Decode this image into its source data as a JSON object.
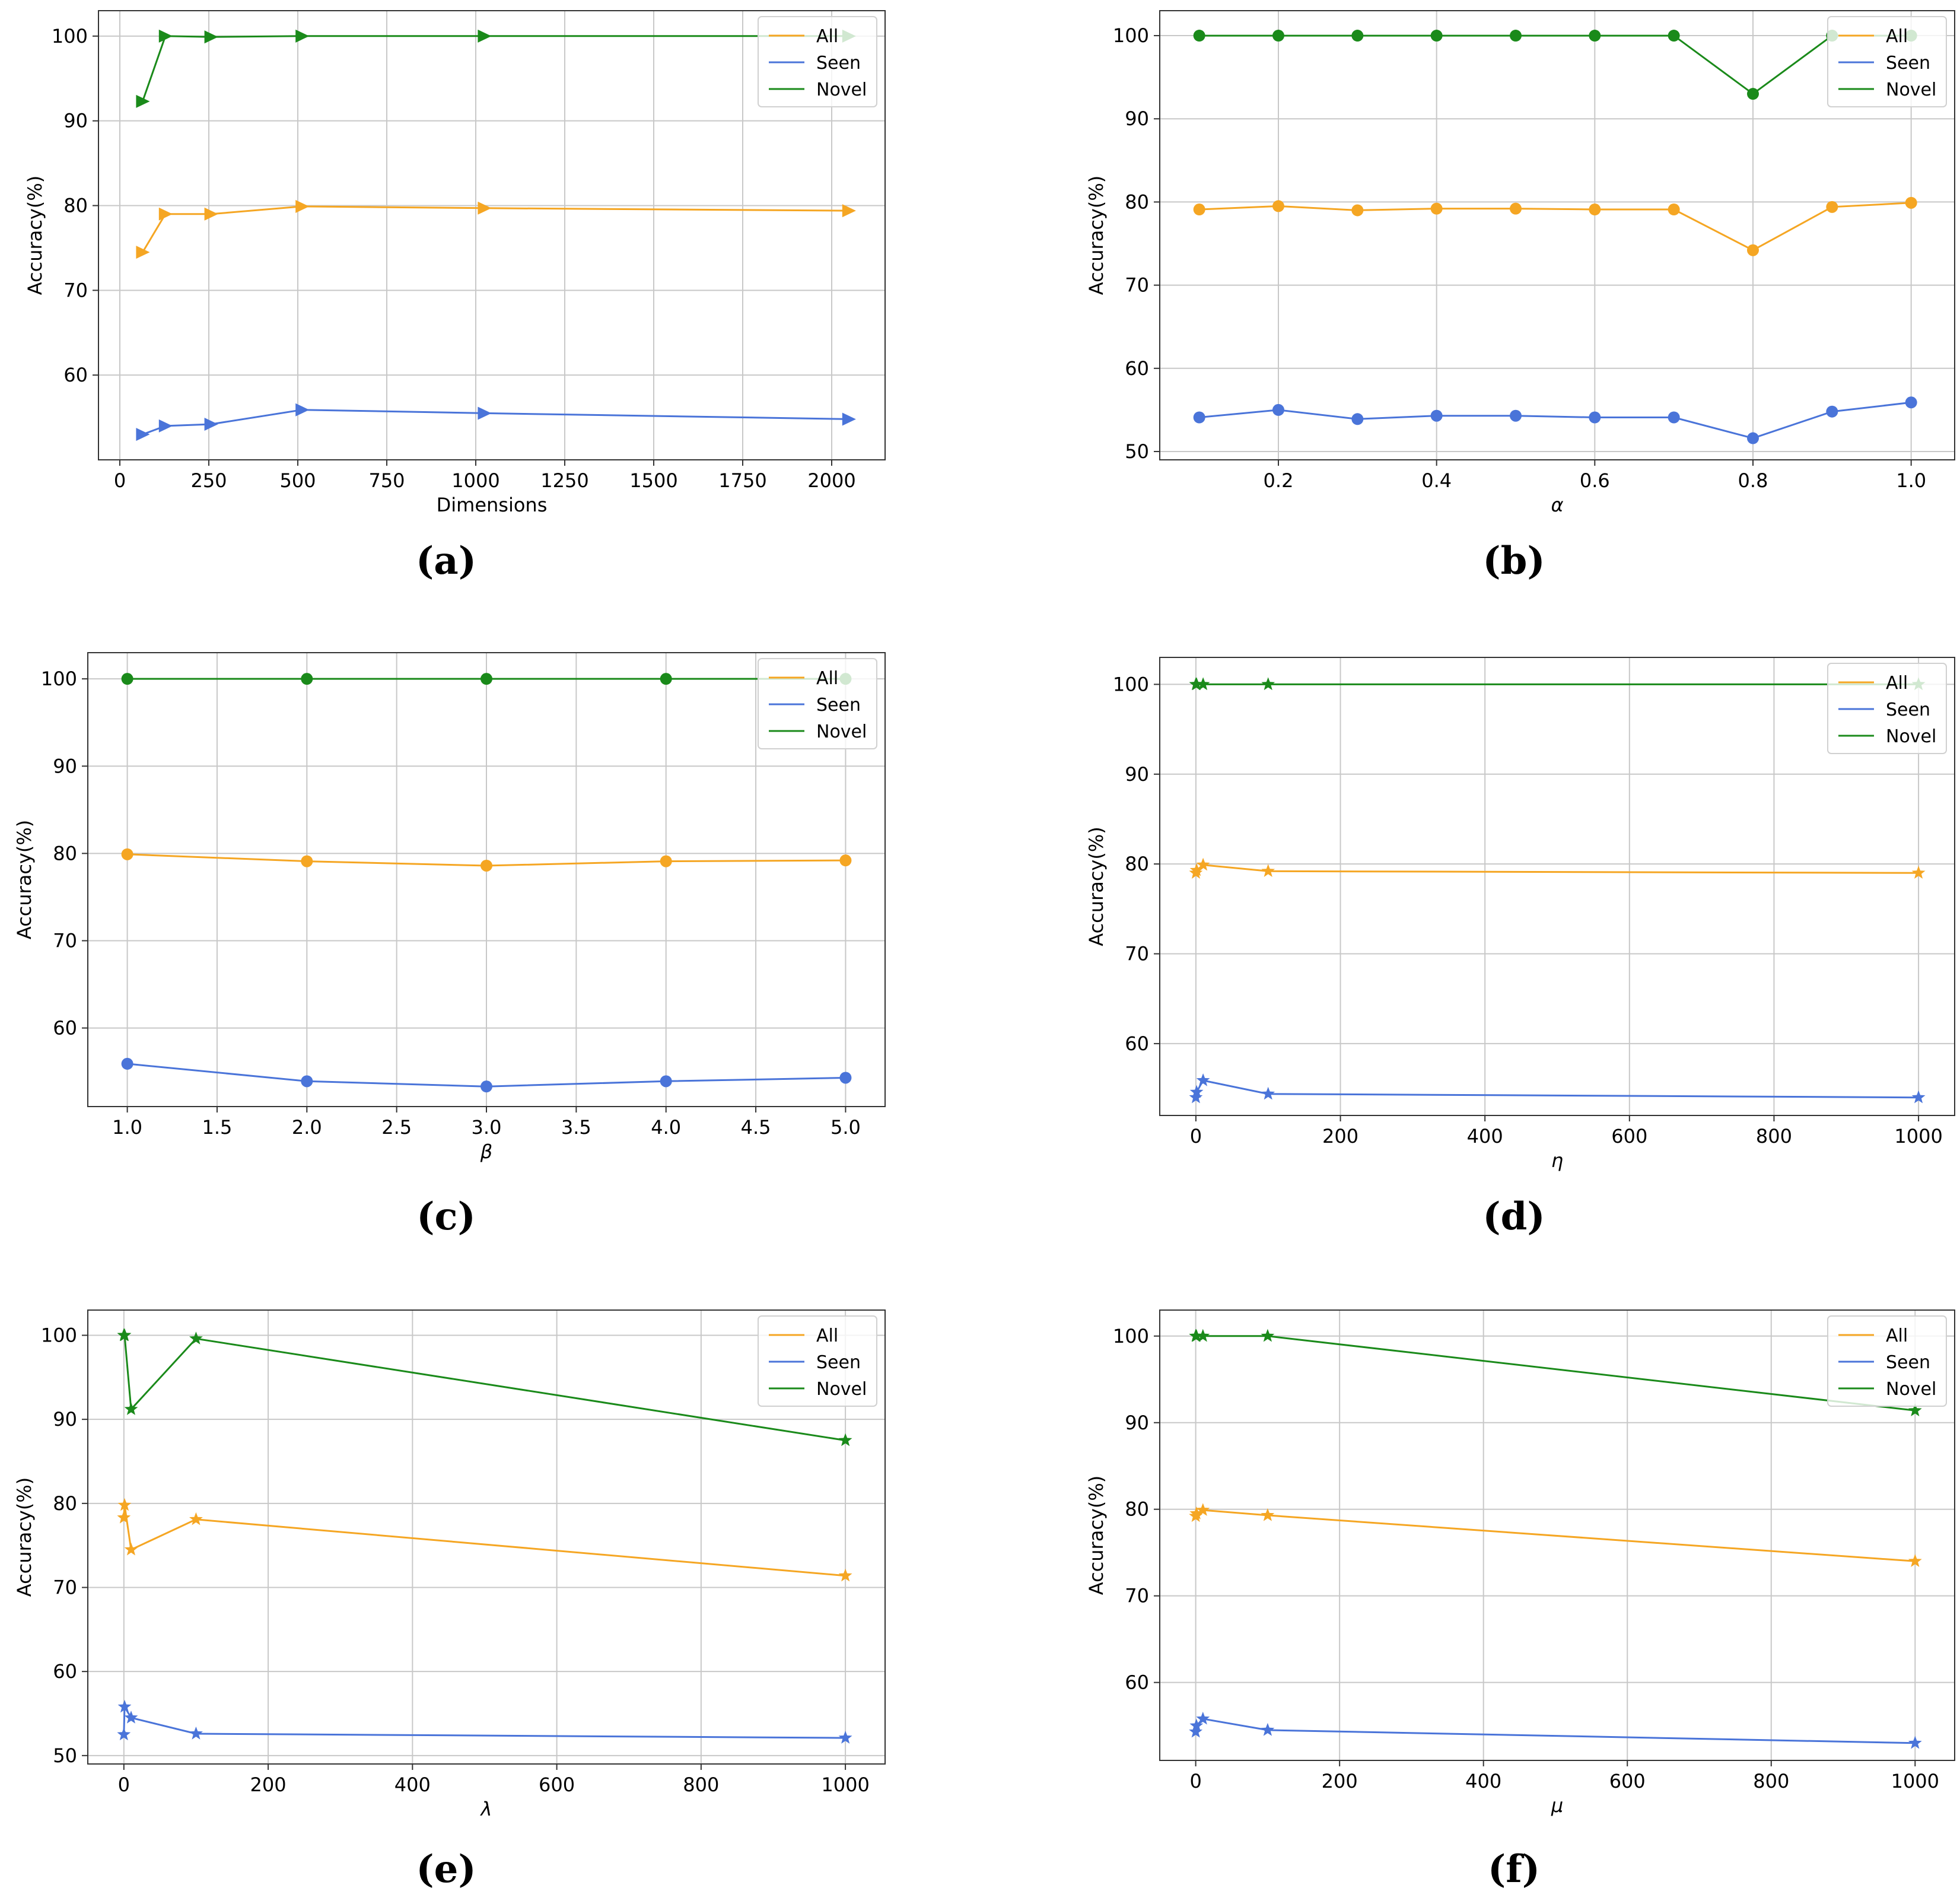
{
  "colors": {
    "all": "#f5a623",
    "seen": "#4a74d9",
    "novel": "#1a8a1a",
    "grid": "#c8c8c8",
    "axis": "#333333"
  },
  "chart_data": [
    {
      "id": "a",
      "type": "line",
      "marker": "triangle-right",
      "panel_label": "(a)",
      "xlabel": "Dimensions",
      "ylabel": "Accuracy(%)",
      "xlim": [
        -60,
        2150
      ],
      "ylim": [
        50,
        103
      ],
      "xticks": [
        0,
        250,
        500,
        750,
        1000,
        1250,
        1500,
        1750,
        2000
      ],
      "xtick_labels": [
        "0",
        "250",
        "500",
        "750",
        "1000",
        "1250",
        "1500",
        "1750",
        "2000"
      ],
      "yticks": [
        60,
        70,
        80,
        90,
        100
      ],
      "ytick_labels": [
        "60",
        "70",
        "80",
        "90",
        "100"
      ],
      "x": [
        64,
        128,
        256,
        512,
        1024,
        2048
      ],
      "legend": "top-right",
      "series": [
        {
          "key": "all",
          "name": "All",
          "values": [
            74.5,
            79.0,
            79.0,
            79.9,
            79.7,
            79.4
          ]
        },
        {
          "key": "seen",
          "name": "Seen",
          "values": [
            53.0,
            54.0,
            54.2,
            55.9,
            55.5,
            54.8
          ]
        },
        {
          "key": "novel",
          "name": "Novel",
          "values": [
            92.3,
            100.0,
            99.9,
            100.0,
            100.0,
            100.0
          ]
        }
      ]
    },
    {
      "id": "b",
      "type": "line",
      "marker": "circle",
      "panel_label": "(b)",
      "xlabel": "α",
      "ylabel": "Accuracy(%)",
      "xlim": [
        0.05,
        1.055
      ],
      "ylim": [
        49,
        103
      ],
      "xticks": [
        0.2,
        0.4,
        0.6,
        0.8,
        1.0
      ],
      "xtick_labels": [
        "0.2",
        "0.4",
        "0.6",
        "0.8",
        "1.0"
      ],
      "yticks": [
        50,
        60,
        70,
        80,
        90,
        100
      ],
      "ytick_labels": [
        "50",
        "60",
        "70",
        "80",
        "90",
        "100"
      ],
      "x": [
        0.1,
        0.2,
        0.3,
        0.4,
        0.5,
        0.6,
        0.7,
        0.8,
        0.9,
        1.0
      ],
      "legend": "top-right",
      "series": [
        {
          "key": "all",
          "name": "All",
          "values": [
            79.1,
            79.5,
            79.0,
            79.2,
            79.2,
            79.1,
            79.1,
            74.2,
            79.4,
            79.9
          ]
        },
        {
          "key": "seen",
          "name": "Seen",
          "values": [
            54.1,
            55.0,
            53.9,
            54.3,
            54.3,
            54.1,
            54.1,
            51.6,
            54.8,
            55.9
          ]
        },
        {
          "key": "novel",
          "name": "Novel",
          "values": [
            100.0,
            100.0,
            100.0,
            100.0,
            100.0,
            100.0,
            100.0,
            93.0,
            100.0,
            100.0
          ]
        }
      ]
    },
    {
      "id": "c",
      "type": "line",
      "marker": "circle",
      "panel_label": "(c)",
      "xlabel": "β",
      "ylabel": "Accuracy(%)",
      "xlim": [
        0.78,
        5.22
      ],
      "ylim": [
        51,
        103
      ],
      "xticks": [
        1.0,
        1.5,
        2.0,
        2.5,
        3.0,
        3.5,
        4.0,
        4.5,
        5.0
      ],
      "xtick_labels": [
        "1.0",
        "1.5",
        "2.0",
        "2.5",
        "3.0",
        "3.5",
        "4.0",
        "4.5",
        "5.0"
      ],
      "yticks": [
        60,
        70,
        80,
        90,
        100
      ],
      "ytick_labels": [
        "60",
        "70",
        "80",
        "90",
        "100"
      ],
      "x": [
        1,
        2,
        3,
        4,
        5
      ],
      "legend": "top-right",
      "series": [
        {
          "key": "all",
          "name": "All",
          "values": [
            79.9,
            79.1,
            78.6,
            79.1,
            79.2
          ]
        },
        {
          "key": "seen",
          "name": "Seen",
          "values": [
            55.9,
            53.9,
            53.3,
            53.9,
            54.3
          ]
        },
        {
          "key": "novel",
          "name": "Novel",
          "values": [
            100.0,
            100.0,
            100.0,
            100.0,
            100.0
          ]
        }
      ]
    },
    {
      "id": "d",
      "type": "line",
      "marker": "star",
      "panel_label": "(d)",
      "xlabel": "η",
      "ylabel": "Accuracy(%)",
      "xlim": [
        -50,
        1050
      ],
      "ylim": [
        52,
        103
      ],
      "xticks": [
        0,
        200,
        400,
        600,
        800,
        1000
      ],
      "xtick_labels": [
        "0",
        "200",
        "400",
        "600",
        "800",
        "1000"
      ],
      "yticks": [
        60,
        70,
        80,
        90,
        100
      ],
      "ytick_labels": [
        "60",
        "70",
        "80",
        "90",
        "100"
      ],
      "x": [
        0.01,
        1,
        10,
        100,
        1000
      ],
      "legend": "top-right",
      "series": [
        {
          "key": "all",
          "name": "All",
          "values": [
            79.0,
            79.3,
            79.9,
            79.2,
            79.0
          ]
        },
        {
          "key": "seen",
          "name": "Seen",
          "values": [
            54.0,
            54.6,
            55.9,
            54.4,
            54.0
          ]
        },
        {
          "key": "novel",
          "name": "Novel",
          "values": [
            100.0,
            100.0,
            100.0,
            100.0,
            100.0
          ]
        }
      ]
    },
    {
      "id": "e",
      "type": "line",
      "marker": "star",
      "panel_label": "(e)",
      "xlabel": "λ",
      "ylabel": "Accuracy(%)",
      "xlim": [
        -50,
        1055
      ],
      "ylim": [
        49,
        103
      ],
      "xticks": [
        0,
        200,
        400,
        600,
        800,
        1000
      ],
      "xtick_labels": [
        "0",
        "200",
        "400",
        "600",
        "800",
        "1000"
      ],
      "yticks": [
        50,
        60,
        70,
        80,
        90,
        100
      ],
      "ytick_labels": [
        "50",
        "60",
        "70",
        "80",
        "90",
        "100"
      ],
      "x": [
        0.01,
        1,
        10,
        100,
        1000
      ],
      "legend": "top-right",
      "series": [
        {
          "key": "all",
          "name": "All",
          "values": [
            78.3,
            79.8,
            74.5,
            78.1,
            71.4
          ]
        },
        {
          "key": "seen",
          "name": "Seen",
          "values": [
            52.5,
            55.8,
            54.5,
            52.6,
            52.1
          ]
        },
        {
          "key": "novel",
          "name": "Novel",
          "values": [
            100.0,
            100.0,
            91.2,
            99.6,
            87.5
          ]
        }
      ]
    },
    {
      "id": "f",
      "type": "line",
      "marker": "star",
      "panel_label": "(f)",
      "xlabel": "μ",
      "ylabel": "Accuracy(%)",
      "xlim": [
        -50,
        1055
      ],
      "ylim": [
        51,
        103
      ],
      "xticks": [
        0,
        200,
        400,
        600,
        800,
        1000
      ],
      "xtick_labels": [
        "0",
        "200",
        "400",
        "600",
        "800",
        "1000"
      ],
      "yticks": [
        60,
        70,
        80,
        90,
        100
      ],
      "ytick_labels": [
        "60",
        "70",
        "80",
        "90",
        "100"
      ],
      "x": [
        0.01,
        1,
        10,
        100,
        1000
      ],
      "legend": "top-right",
      "series": [
        {
          "key": "all",
          "name": "All",
          "values": [
            79.2,
            79.5,
            79.9,
            79.3,
            74.0
          ]
        },
        {
          "key": "seen",
          "name": "Seen",
          "values": [
            54.3,
            55.0,
            55.8,
            54.5,
            53.0
          ]
        },
        {
          "key": "novel",
          "name": "Novel",
          "values": [
            100.0,
            100.0,
            100.0,
            100.0,
            91.4
          ]
        }
      ]
    }
  ]
}
